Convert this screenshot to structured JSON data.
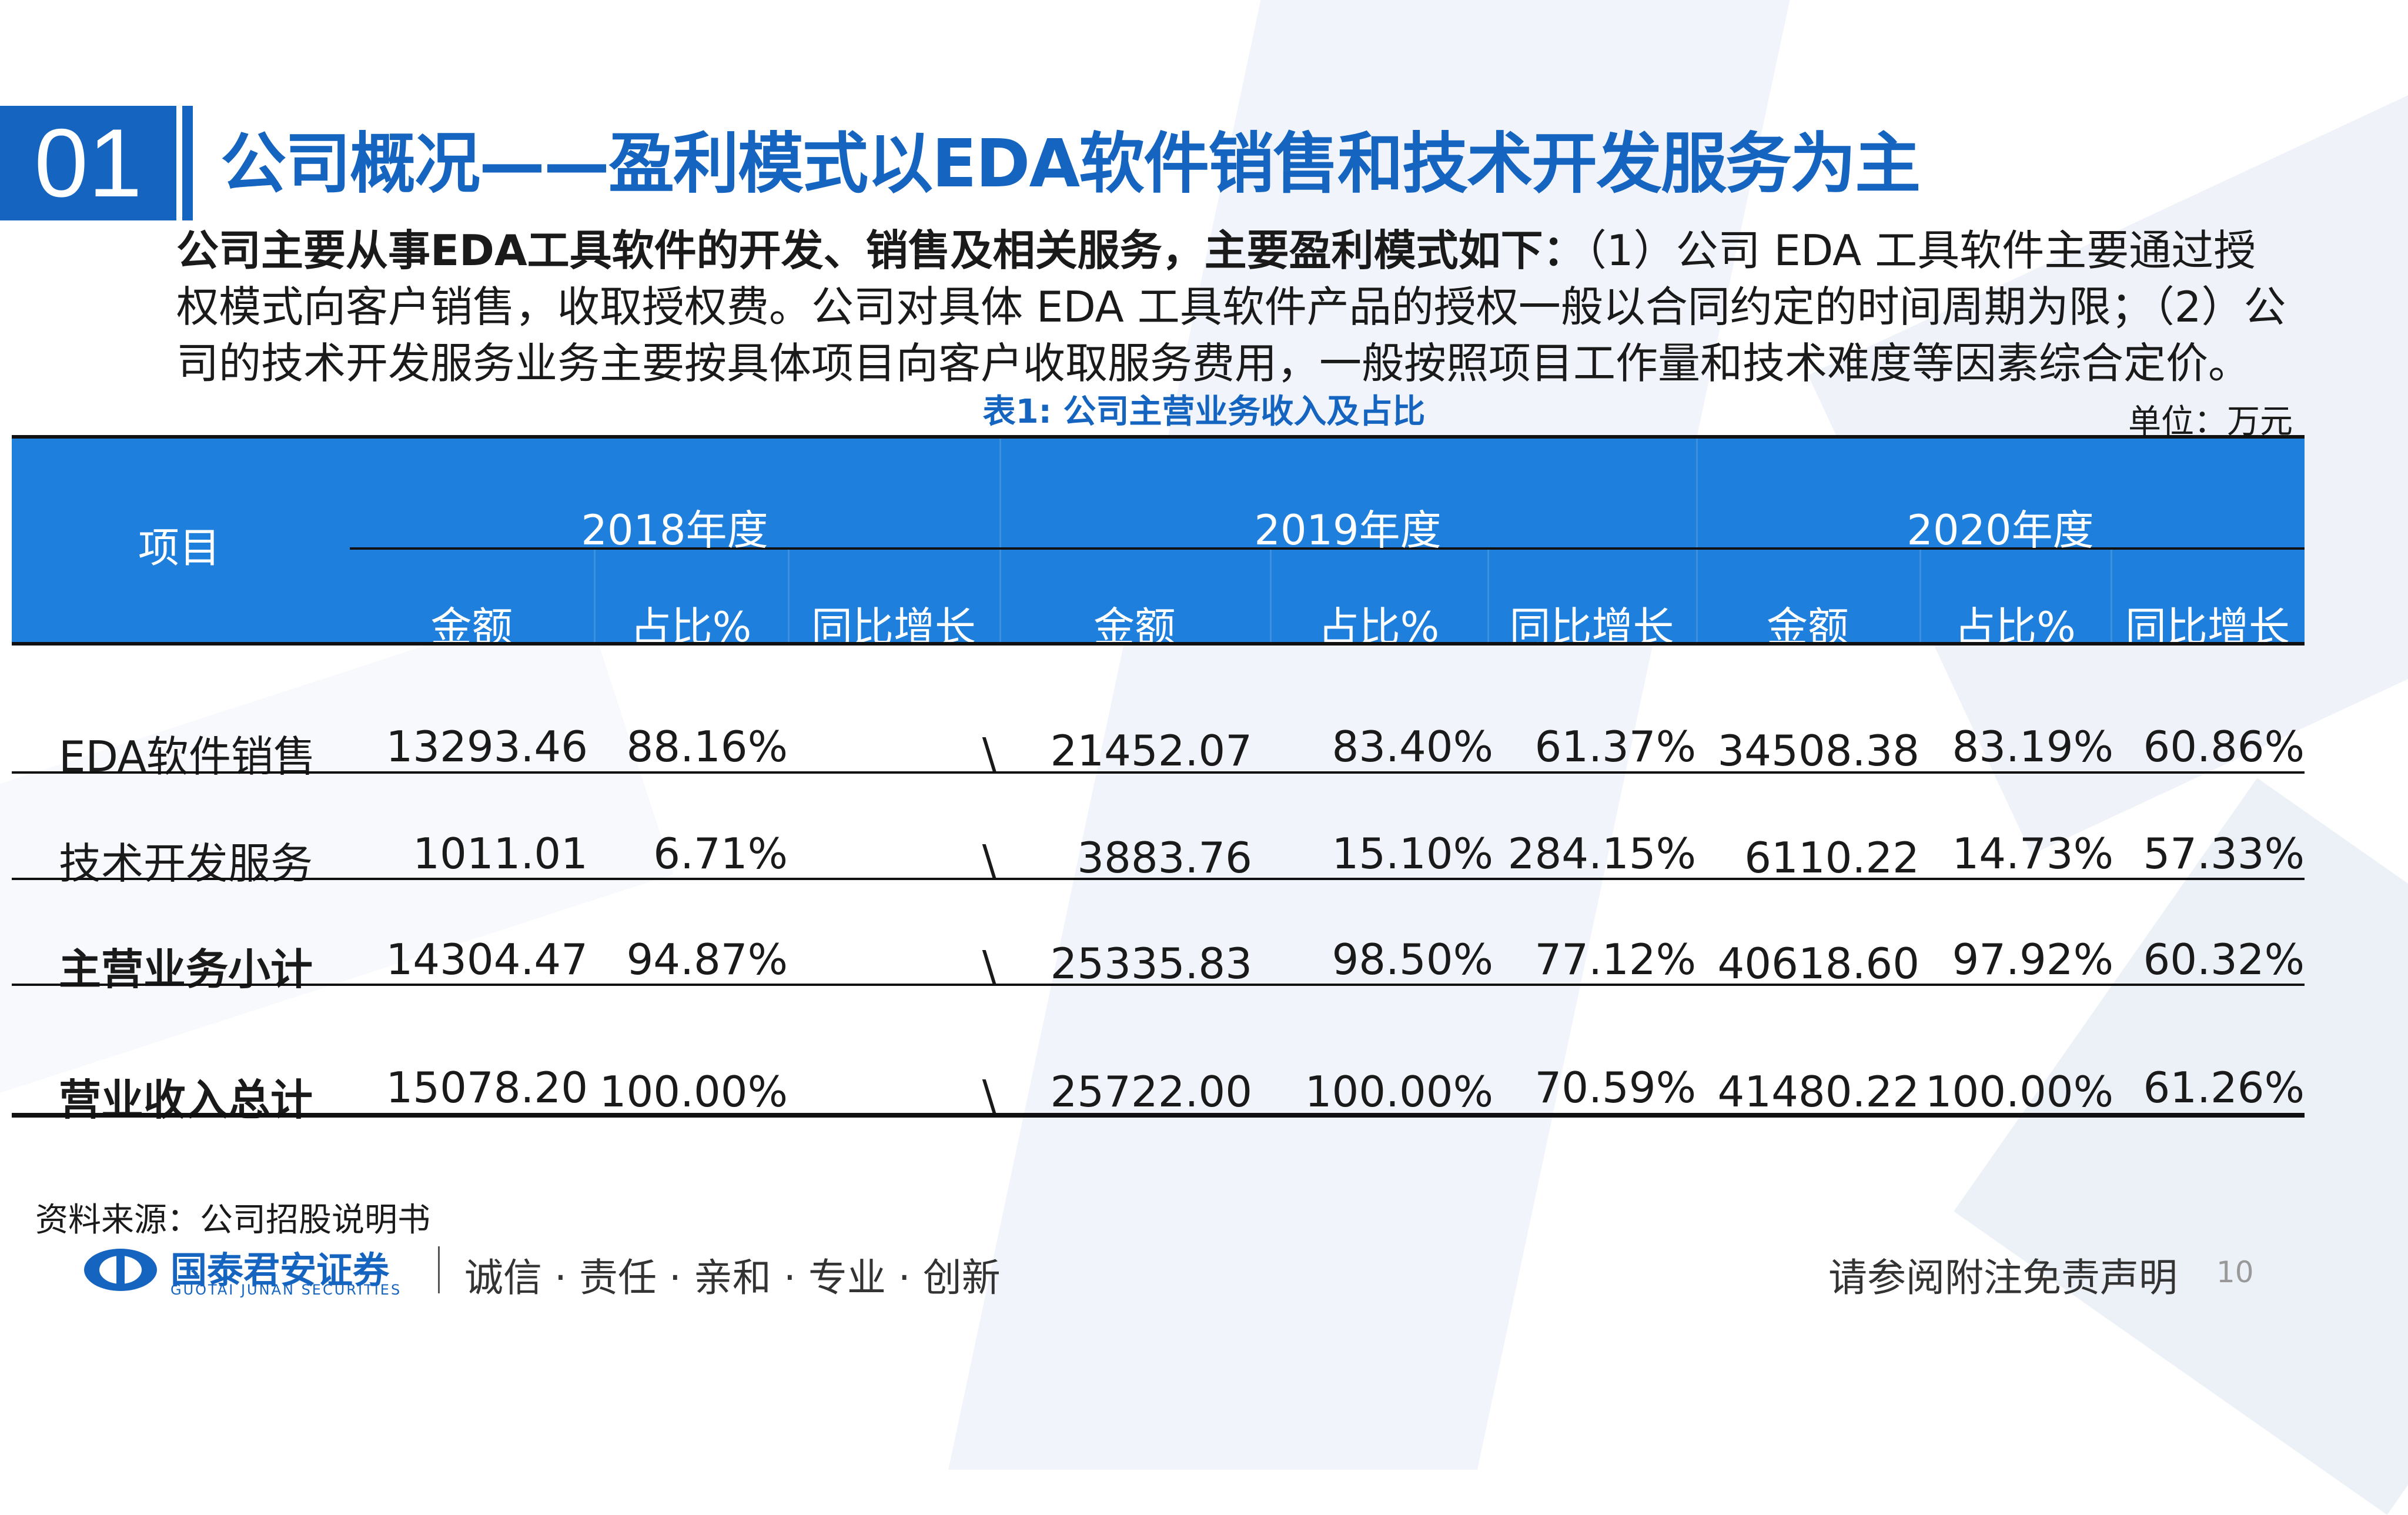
{
  "header": {
    "section_number": "01",
    "title": "公司概况——盈利模式以EDA软件销售和技术开发服务为主"
  },
  "intro": {
    "bold": "公司主要从事EDA工具软件的开发、销售及相关服务，主要盈利模式如下：",
    "text": "（1）公司 EDA 工具软件主要通过授权模式向客户销售，收取授权费。公司对具体 EDA 工具软件产品的授权一般以合同约定的时间周期为限；（2）公司的技术开发服务业务主要按具体项目向客户收取服务费用，一般按照项目工作量和技术难度等因素综合定价。"
  },
  "table": {
    "caption": "表1: 公司主营业务收入及占比",
    "unit": "单位：万元",
    "item_header": "项目",
    "years": [
      "2018年度",
      "2019年度",
      "2020年度"
    ],
    "sub_headers": [
      "金额",
      "占比%",
      "同比增长",
      "金额",
      "占比%",
      "同比增长",
      "金额",
      "占比%",
      "同比增长"
    ],
    "rows": [
      {
        "label": "EDA软件销售",
        "cells": [
          "13293.46",
          "88.16%",
          "\\",
          "21452.07",
          "83.40%",
          "61.37%",
          "34508.38",
          "83.19%",
          "60.86%"
        ]
      },
      {
        "label": "技术开发服务",
        "cells": [
          "1011.01",
          "6.71%",
          "\\",
          "3883.76",
          "15.10%",
          "284.15%",
          "6110.22",
          "14.73%",
          "57.33%"
        ]
      },
      {
        "label": "主营业务小计",
        "cells": [
          "14304.47",
          "94.87%",
          "\\",
          "25335.83",
          "98.50%",
          "77.12%",
          "40618.60",
          "97.92%",
          "60.32%"
        ]
      },
      {
        "label": "营业收入总计",
        "cells": [
          "15078.20",
          "100.00%",
          "\\",
          "25722.00",
          "100.00%",
          "70.59%",
          "41480.22",
          "100.00%",
          "61.26%"
        ]
      }
    ]
  },
  "footer": {
    "source": "资料来源：公司招股说明书",
    "logo_cn": "国泰君安证券",
    "logo_en": "GUOTAI JUNAN SECURITIES",
    "slogan": "诚信 · 责任 · 亲和 · 专业 · 创新",
    "disclaimer": "请参阅附注免责声明",
    "page_number": "10"
  },
  "colors": {
    "accent": "#1565c0",
    "header_fill": "#1f7fdc"
  }
}
